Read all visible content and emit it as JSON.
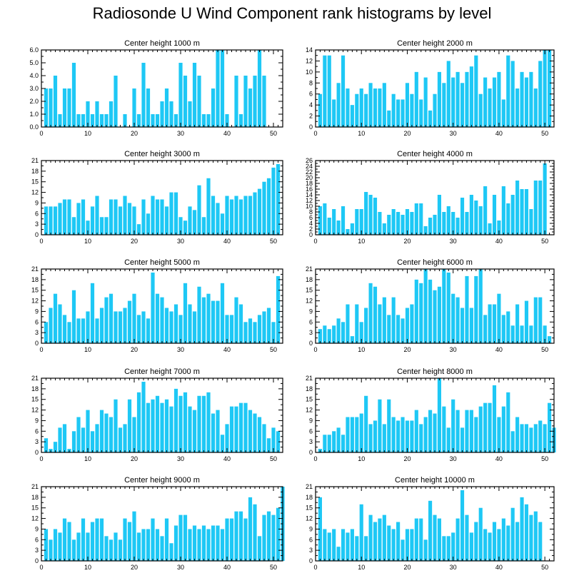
{
  "title": "Radiosonde U Wind Component rank histograms by level",
  "colors": {
    "bar": "#1EC8F5",
    "axis": "#000000"
  },
  "chart_data": [
    {
      "type": "bar",
      "title": "Center height 1000 m",
      "x_ticks": [
        0,
        10,
        20,
        30,
        40,
        50
      ],
      "xlim": [
        0,
        52
      ],
      "ylim": [
        0,
        6
      ],
      "y_ticks": [
        "0.0",
        "1.0",
        "2.0",
        "3.0",
        "4.0",
        "5.0",
        "6.0"
      ],
      "values": [
        3,
        3,
        4,
        1,
        3,
        3,
        5,
        1,
        1,
        2,
        1,
        2,
        1,
        1,
        2,
        4,
        0,
        1,
        0,
        3,
        1,
        5,
        3,
        1,
        1,
        2,
        3,
        2,
        1,
        5,
        4,
        2,
        5,
        4,
        1,
        1,
        3,
        6,
        6,
        1,
        0,
        4,
        1,
        4,
        3,
        4,
        6,
        4
      ]
    },
    {
      "type": "bar",
      "title": "Center height 2000 m",
      "x_ticks": [
        0,
        10,
        20,
        30,
        40,
        50
      ],
      "xlim": [
        0,
        52
      ],
      "ylim": [
        0,
        14
      ],
      "y_ticks": [
        "0",
        "2",
        "4",
        "6",
        "8",
        "10",
        "12",
        "14"
      ],
      "values": [
        6,
        13,
        13,
        5,
        8,
        13,
        7,
        4,
        6,
        7,
        6,
        8,
        7,
        7,
        8,
        3,
        6,
        5,
        5,
        8,
        6,
        10,
        5,
        9,
        3,
        6,
        10,
        8,
        12,
        9,
        10,
        8,
        10,
        11,
        13,
        6,
        9,
        7,
        9,
        10,
        5,
        13,
        12,
        7,
        10,
        9,
        10,
        7,
        12,
        14,
        14
      ]
    },
    {
      "type": "bar",
      "title": "Center height 3000 m",
      "x_ticks": [
        0,
        10,
        20,
        30,
        40,
        50
      ],
      "xlim": [
        0,
        52
      ],
      "ylim": [
        0,
        21
      ],
      "y_ticks": [
        "0",
        "3",
        "6",
        "9",
        "12",
        "15",
        "18",
        "21"
      ],
      "values": [
        8,
        8,
        8,
        9,
        10,
        10,
        5,
        9,
        10,
        4,
        8,
        11,
        5,
        5,
        10,
        10,
        8,
        11,
        9,
        8,
        3,
        10,
        6,
        11,
        10,
        10,
        8,
        12,
        12,
        5,
        4,
        8,
        7,
        14,
        5,
        16,
        11,
        9,
        6,
        11,
        10,
        11,
        10,
        11,
        11,
        12,
        13,
        15,
        16,
        19,
        20
      ]
    },
    {
      "type": "bar",
      "title": "Center height 4000 m",
      "x_ticks": [
        0,
        10,
        20,
        30,
        40,
        50
      ],
      "xlim": [
        0,
        52
      ],
      "ylim": [
        0,
        26
      ],
      "y_ticks": [
        "0",
        "2",
        "4",
        "6",
        "8",
        "10",
        "12",
        "14",
        "16",
        "18",
        "20",
        "22",
        "24",
        "26"
      ],
      "values": [
        10,
        11,
        6,
        9,
        5,
        10,
        2,
        4,
        9,
        9,
        15,
        14,
        13,
        8,
        4,
        7,
        9,
        8,
        7,
        9,
        8,
        11,
        11,
        3,
        6,
        7,
        14,
        8,
        10,
        8,
        6,
        13,
        8,
        14,
        12,
        10,
        17,
        4,
        14,
        5,
        17,
        11,
        14,
        19,
        16,
        16,
        9,
        19,
        19,
        25
      ]
    },
    {
      "type": "bar",
      "title": "Center height 5000 m",
      "x_ticks": [
        0,
        10,
        20,
        30,
        40,
        50
      ],
      "xlim": [
        0,
        52
      ],
      "ylim": [
        0,
        21
      ],
      "y_ticks": [
        "0",
        "3",
        "6",
        "9",
        "12",
        "15",
        "18",
        "21"
      ],
      "values": [
        6,
        10,
        14,
        11,
        8,
        6,
        15,
        7,
        7,
        9,
        17,
        7,
        10,
        13,
        14,
        9,
        9,
        10,
        12,
        14,
        8,
        9,
        7,
        20,
        14,
        13,
        10,
        9,
        11,
        8,
        17,
        11,
        9,
        16,
        13,
        14,
        12,
        12,
        17,
        8,
        8,
        13,
        11,
        6,
        7,
        6,
        8,
        9,
        10,
        6,
        19
      ]
    },
    {
      "type": "bar",
      "title": "Center height 6000 m",
      "x_ticks": [
        0,
        10,
        20,
        30,
        40,
        50
      ],
      "xlim": [
        0,
        52
      ],
      "ylim": [
        0,
        21
      ],
      "y_ticks": [
        "0",
        "3",
        "6",
        "9",
        "12",
        "15",
        "18",
        "21"
      ],
      "values": [
        4,
        5,
        4,
        5,
        7,
        6,
        11,
        2,
        11,
        6,
        10,
        17,
        16,
        11,
        13,
        8,
        13,
        8,
        7,
        10,
        11,
        18,
        17,
        21,
        18,
        15,
        16,
        21,
        20,
        14,
        13,
        10,
        19,
        10,
        19,
        21,
        8,
        11,
        11,
        14,
        8,
        9,
        5,
        11,
        5,
        12,
        5,
        13,
        13,
        5,
        2
      ]
    },
    {
      "type": "bar",
      "title": "Center height 7000 m",
      "x_ticks": [
        0,
        10,
        20,
        30,
        40,
        50
      ],
      "xlim": [
        0,
        52
      ],
      "ylim": [
        0,
        21
      ],
      "y_ticks": [
        "0",
        "3",
        "6",
        "9",
        "12",
        "15",
        "18",
        "21"
      ],
      "values": [
        4,
        1,
        3,
        7,
        8,
        1,
        6,
        10,
        7,
        12,
        6,
        8,
        12,
        11,
        10,
        15,
        7,
        8,
        15,
        10,
        17,
        20,
        14,
        15,
        16,
        14,
        15,
        13,
        18,
        16,
        17,
        13,
        12,
        16,
        16,
        17,
        11,
        12,
        5,
        8,
        13,
        13,
        14,
        14,
        12,
        11,
        10,
        8,
        4,
        7,
        6
      ]
    },
    {
      "type": "bar",
      "title": "Center height 8000 m",
      "x_ticks": [
        0,
        10,
        20,
        30,
        40,
        50
      ],
      "xlim": [
        0,
        52
      ],
      "ylim": [
        0,
        21
      ],
      "y_ticks": [
        "0",
        "3",
        "6",
        "9",
        "12",
        "15",
        "18",
        "21"
      ],
      "values": [
        1,
        5,
        5,
        6,
        7,
        5,
        10,
        10,
        10,
        11,
        16,
        8,
        9,
        15,
        8,
        15,
        10,
        9,
        10,
        9,
        9,
        12,
        8,
        10,
        12,
        11,
        21,
        13,
        7,
        15,
        12,
        7,
        12,
        12,
        10,
        13,
        14,
        14,
        19,
        10,
        13,
        17,
        6,
        10,
        8,
        8,
        7,
        8,
        9,
        8,
        14,
        7
      ]
    },
    {
      "type": "bar",
      "title": "Center height 9000 m",
      "x_ticks": [
        0,
        10,
        20,
        30,
        40,
        50
      ],
      "xlim": [
        0,
        52
      ],
      "ylim": [
        0,
        21
      ],
      "y_ticks": [
        "0",
        "3",
        "6",
        "9",
        "12",
        "15",
        "18",
        "21"
      ],
      "values": [
        9,
        6,
        9,
        8,
        12,
        11,
        6,
        8,
        12,
        8,
        11,
        12,
        12,
        7,
        6,
        8,
        6,
        12,
        11,
        14,
        8,
        9,
        9,
        12,
        9,
        7,
        12,
        5,
        10,
        13,
        13,
        9,
        10,
        9,
        10,
        9,
        10,
        10,
        9,
        12,
        12,
        14,
        14,
        12,
        18,
        16,
        7,
        13,
        14,
        13,
        15,
        21
      ]
    },
    {
      "type": "bar",
      "title": "Center height 10000 m",
      "x_ticks": [
        0,
        10,
        20,
        30,
        40,
        50
      ],
      "xlim": [
        0,
        52
      ],
      "ylim": [
        0,
        21
      ],
      "y_ticks": [
        "0",
        "3",
        "6",
        "9",
        "12",
        "15",
        "18",
        "21"
      ],
      "values": [
        18,
        9,
        8,
        9,
        4,
        9,
        8,
        9,
        7,
        16,
        7,
        13,
        11,
        12,
        13,
        10,
        9,
        11,
        6,
        9,
        9,
        12,
        12,
        6,
        17,
        13,
        12,
        7,
        7,
        8,
        12,
        20,
        13,
        8,
        11,
        15,
        9,
        8,
        11,
        9,
        12,
        10,
        15,
        11,
        18,
        16,
        13,
        14,
        11
      ]
    }
  ]
}
